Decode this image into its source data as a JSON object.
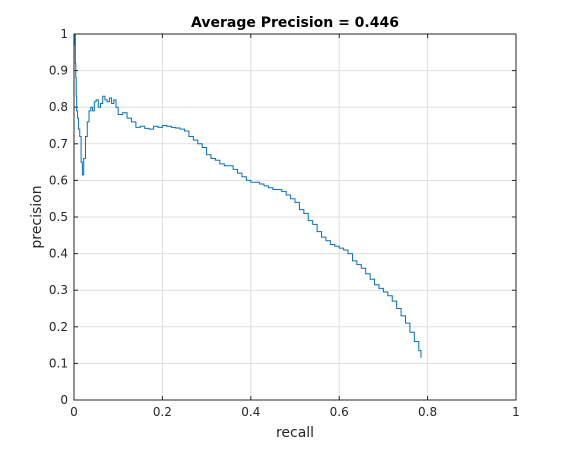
{
  "chart_data": {
    "type": "line",
    "title": "Average Precision = 0.446",
    "xlabel": "recall",
    "ylabel": "precision",
    "xlim": [
      0,
      1
    ],
    "ylim": [
      0,
      1
    ],
    "xticks": [
      0,
      0.2,
      0.4,
      0.6,
      0.8,
      1
    ],
    "xtick_labels": [
      "0",
      "0.2",
      "0.4",
      "0.6",
      "0.8",
      "1"
    ],
    "yticks": [
      0,
      0.1,
      0.2,
      0.3,
      0.4,
      0.5,
      0.6,
      0.7,
      0.8,
      0.9,
      1
    ],
    "ytick_labels": [
      "0",
      "0.1",
      "0.2",
      "0.3",
      "0.4",
      "0.5",
      "0.6",
      "0.7",
      "0.8",
      "0.9",
      "1"
    ],
    "grid": true,
    "line_color": "#0072BD",
    "series": [
      {
        "x": [
          0.0,
          0.001,
          0.002,
          0.003,
          0.004,
          0.005,
          0.006,
          0.008,
          0.01,
          0.013,
          0.016,
          0.019,
          0.022,
          0.026,
          0.03,
          0.034,
          0.038,
          0.042,
          0.046,
          0.05,
          0.055,
          0.06,
          0.065,
          0.07,
          0.075,
          0.08,
          0.085,
          0.09,
          0.095,
          0.1,
          0.11,
          0.12,
          0.13,
          0.14,
          0.15,
          0.16,
          0.17,
          0.18,
          0.19,
          0.2,
          0.21,
          0.22,
          0.23,
          0.24,
          0.25,
          0.26,
          0.27,
          0.28,
          0.29,
          0.3,
          0.31,
          0.32,
          0.33,
          0.34,
          0.35,
          0.36,
          0.37,
          0.38,
          0.39,
          0.4,
          0.41,
          0.42,
          0.43,
          0.44,
          0.45,
          0.46,
          0.47,
          0.48,
          0.49,
          0.5,
          0.51,
          0.52,
          0.53,
          0.54,
          0.55,
          0.56,
          0.57,
          0.58,
          0.59,
          0.6,
          0.61,
          0.62,
          0.63,
          0.64,
          0.65,
          0.66,
          0.67,
          0.68,
          0.69,
          0.7,
          0.71,
          0.72,
          0.73,
          0.74,
          0.75,
          0.76,
          0.77,
          0.78,
          0.785
        ],
        "y": [
          1.0,
          0.97,
          1.0,
          0.92,
          0.88,
          0.83,
          0.79,
          0.77,
          0.74,
          0.72,
          0.65,
          0.615,
          0.66,
          0.72,
          0.76,
          0.79,
          0.8,
          0.79,
          0.815,
          0.82,
          0.8,
          0.81,
          0.83,
          0.82,
          0.815,
          0.825,
          0.81,
          0.82,
          0.8,
          0.78,
          0.785,
          0.77,
          0.76,
          0.745,
          0.748,
          0.742,
          0.74,
          0.748,
          0.745,
          0.75,
          0.748,
          0.745,
          0.743,
          0.74,
          0.735,
          0.72,
          0.71,
          0.7,
          0.69,
          0.67,
          0.66,
          0.655,
          0.645,
          0.64,
          0.64,
          0.63,
          0.62,
          0.61,
          0.6,
          0.595,
          0.595,
          0.59,
          0.585,
          0.58,
          0.575,
          0.575,
          0.57,
          0.56,
          0.55,
          0.54,
          0.52,
          0.51,
          0.49,
          0.48,
          0.46,
          0.445,
          0.435,
          0.425,
          0.42,
          0.415,
          0.41,
          0.4,
          0.38,
          0.37,
          0.36,
          0.345,
          0.33,
          0.315,
          0.305,
          0.295,
          0.285,
          0.27,
          0.25,
          0.23,
          0.21,
          0.185,
          0.16,
          0.135,
          0.115
        ]
      }
    ]
  }
}
